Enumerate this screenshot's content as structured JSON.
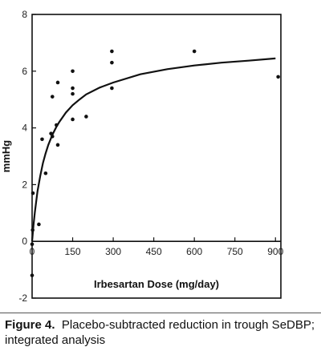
{
  "chart_data": {
    "type": "scatter",
    "xlabel": "Irbesartan Dose (mg/day)",
    "ylabel": "mmHg",
    "xlim": [
      0,
      920
    ],
    "ylim": [
      -2,
      8
    ],
    "x_ticks": [
      0,
      150,
      300,
      450,
      600,
      750,
      900
    ],
    "y_ticks": [
      -2,
      0,
      2,
      4,
      6,
      8
    ],
    "grid": false,
    "legend": "none",
    "points": [
      {
        "x": 0,
        "y": -1.2
      },
      {
        "x": 0,
        "y": -0.1
      },
      {
        "x": 2,
        "y": 0.4
      },
      {
        "x": 3,
        "y": 1.7
      },
      {
        "x": 25,
        "y": 0.6
      },
      {
        "x": 37,
        "y": 3.6
      },
      {
        "x": 50,
        "y": 2.4
      },
      {
        "x": 70,
        "y": 3.8
      },
      {
        "x": 75,
        "y": 5.1
      },
      {
        "x": 75,
        "y": 3.7
      },
      {
        "x": 90,
        "y": 4.1
      },
      {
        "x": 95,
        "y": 5.6
      },
      {
        "x": 95,
        "y": 3.4
      },
      {
        "x": 150,
        "y": 6.0
      },
      {
        "x": 150,
        "y": 5.4
      },
      {
        "x": 150,
        "y": 5.2
      },
      {
        "x": 150,
        "y": 4.3
      },
      {
        "x": 200,
        "y": 4.4
      },
      {
        "x": 295,
        "y": 6.7
      },
      {
        "x": 295,
        "y": 6.3
      },
      {
        "x": 295,
        "y": 5.4
      },
      {
        "x": 600,
        "y": 6.7
      },
      {
        "x": 910,
        "y": 5.8
      }
    ],
    "fit_curve": {
      "x": [
        0,
        5,
        10,
        20,
        30,
        40,
        50,
        60,
        75,
        90,
        100,
        125,
        150,
        175,
        200,
        250,
        300,
        400,
        500,
        600,
        700,
        800,
        900
      ],
      "y": [
        0.0,
        0.56,
        1.02,
        1.76,
        2.3,
        2.76,
        3.1,
        3.4,
        3.76,
        4.04,
        4.2,
        4.54,
        4.8,
        5.0,
        5.18,
        5.42,
        5.6,
        5.89,
        6.07,
        6.2,
        6.3,
        6.37,
        6.45
      ]
    }
  },
  "caption": {
    "label": "Figure 4.",
    "text": "Placebo-subtracted reduction in trough SeDBP; integrated analysis"
  }
}
